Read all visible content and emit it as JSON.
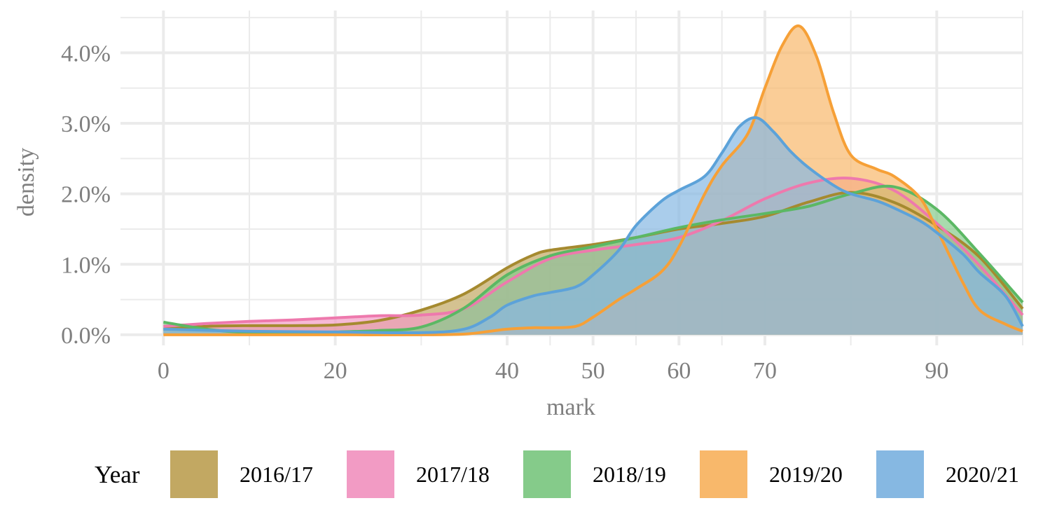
{
  "chart_data": {
    "type": "area",
    "xlabel": "mark",
    "ylabel": "density",
    "xlim": [
      -5,
      100
    ],
    "ylim": [
      -0.0015,
      0.046
    ],
    "x_ticks": [
      0,
      20,
      40,
      50,
      60,
      70,
      90
    ],
    "x_tick_labels": [
      "0",
      "20",
      "40",
      "50",
      "60",
      "70",
      "90"
    ],
    "x_minor_gridlines": [
      10,
      30,
      45,
      55,
      65,
      80,
      100
    ],
    "y_ticks": [
      0,
      0.01,
      0.02,
      0.03,
      0.04
    ],
    "y_tick_labels": [
      "0.0%",
      "1.0%",
      "2.0%",
      "3.0%",
      "4.0%"
    ],
    "grid": true,
    "legend": {
      "title": "Year",
      "position": "bottom"
    },
    "series": [
      {
        "name": "2016/17",
        "fill": "#c2a862",
        "stroke": "#a58a2f",
        "x": [
          0,
          5,
          10,
          15,
          20,
          25,
          30,
          35,
          40,
          43,
          45,
          50,
          55,
          60,
          65,
          70,
          75,
          80,
          85,
          90,
          95,
          100
        ],
        "y": [
          0.0008,
          0.0012,
          0.0013,
          0.0013,
          0.0014,
          0.002,
          0.0035,
          0.0058,
          0.0095,
          0.0113,
          0.012,
          0.0128,
          0.0138,
          0.015,
          0.0158,
          0.0168,
          0.0188,
          0.0202,
          0.0188,
          0.0155,
          0.011,
          0.0037
        ]
      },
      {
        "name": "2017/18",
        "fill": "#f29bc4",
        "stroke": "#ee79ad",
        "x": [
          0,
          5,
          10,
          15,
          20,
          25,
          30,
          35,
          40,
          45,
          50,
          55,
          60,
          65,
          70,
          75,
          80,
          85,
          90,
          95,
          100
        ],
        "y": [
          0.0012,
          0.0016,
          0.0019,
          0.0021,
          0.0024,
          0.0027,
          0.0028,
          0.0037,
          0.0075,
          0.0108,
          0.012,
          0.0128,
          0.0138,
          0.0162,
          0.0193,
          0.0215,
          0.0222,
          0.0205,
          0.0158,
          0.0098,
          0.0028
        ]
      },
      {
        "name": "2018/19",
        "fill": "#85cb8a",
        "stroke": "#5bb864",
        "x": [
          0,
          5,
          10,
          15,
          20,
          25,
          30,
          35,
          40,
          45,
          50,
          55,
          60,
          65,
          70,
          75,
          80,
          85,
          90,
          95,
          100
        ],
        "y": [
          0.0018,
          0.0008,
          0.0003,
          0.0002,
          0.0004,
          0.0006,
          0.0011,
          0.0038,
          0.0085,
          0.0112,
          0.0125,
          0.0138,
          0.0152,
          0.0163,
          0.0172,
          0.0182,
          0.02,
          0.021,
          0.0178,
          0.0115,
          0.0046
        ]
      },
      {
        "name": "2019/20",
        "fill": "#f8b86b",
        "stroke": "#f6a037",
        "x": [
          0,
          10,
          20,
          30,
          35,
          38,
          40,
          43,
          45,
          48,
          50,
          53,
          55,
          58,
          60,
          63,
          65,
          68,
          70,
          72,
          74,
          76,
          78,
          80,
          83,
          85,
          88,
          90,
          93,
          95,
          98,
          100
        ],
        "y": [
          0,
          0,
          0,
          0,
          0.0001,
          0.0005,
          0.0008,
          0.001,
          0.001,
          0.0012,
          0.0025,
          0.005,
          0.0065,
          0.009,
          0.0125,
          0.02,
          0.024,
          0.0285,
          0.035,
          0.041,
          0.0438,
          0.0395,
          0.0315,
          0.0255,
          0.0235,
          0.0225,
          0.0195,
          0.015,
          0.0075,
          0.0035,
          0.0015,
          0.0005
        ]
      },
      {
        "name": "2020/21",
        "fill": "#86b8e2",
        "stroke": "#5ca2d9",
        "x": [
          0,
          10,
          20,
          30,
          35,
          38,
          40,
          43,
          45,
          48,
          50,
          53,
          55,
          58,
          60,
          63,
          65,
          67,
          69,
          71,
          73,
          75,
          78,
          80,
          83,
          85,
          88,
          90,
          93,
          95,
          98,
          100
        ],
        "y": [
          0.0008,
          0.0005,
          0.0004,
          0.0003,
          0.0008,
          0.0025,
          0.0042,
          0.0055,
          0.006,
          0.0068,
          0.0085,
          0.012,
          0.0155,
          0.019,
          0.0205,
          0.0225,
          0.0258,
          0.0295,
          0.0308,
          0.0288,
          0.026,
          0.0238,
          0.0212,
          0.02,
          0.019,
          0.018,
          0.0162,
          0.0145,
          0.0115,
          0.0088,
          0.0055,
          0.0012
        ]
      }
    ]
  }
}
